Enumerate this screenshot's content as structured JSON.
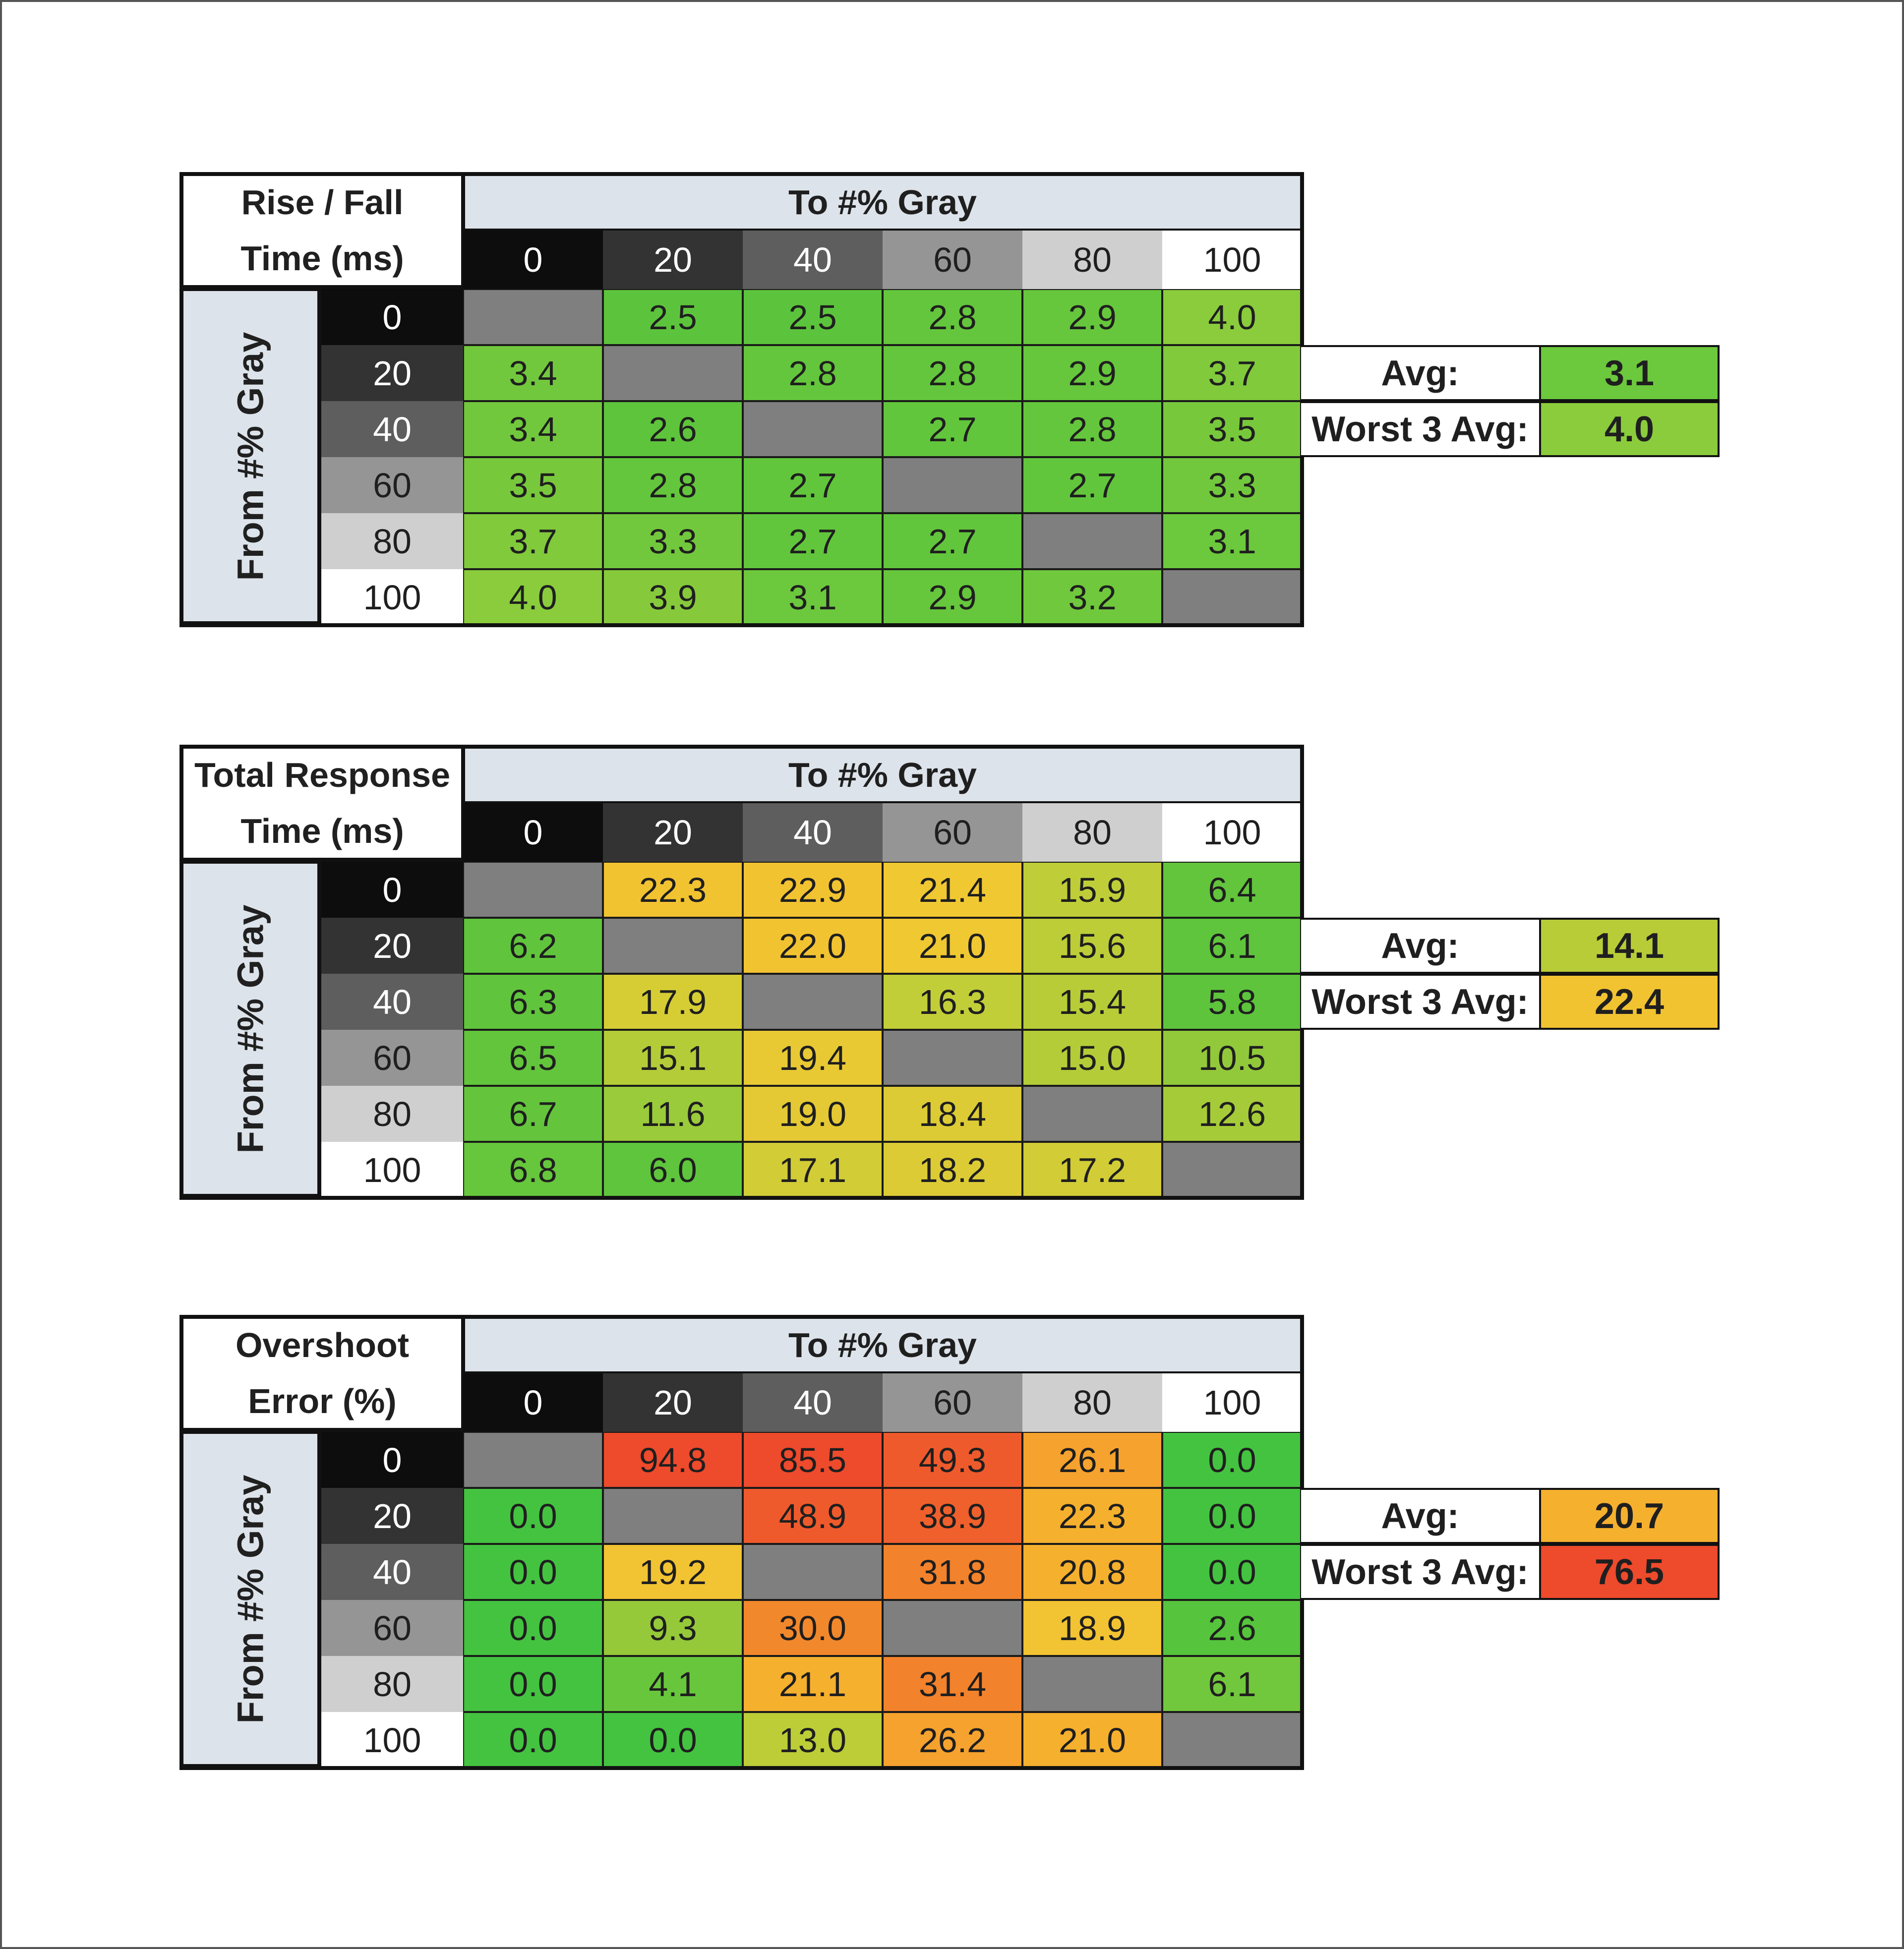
{
  "chart_data": [
    {
      "type": "table",
      "title_lines": [
        "Rise / Fall",
        "Time (ms)"
      ],
      "column_header": "To #% Gray",
      "row_header": "From #% Gray",
      "levels": [
        "0",
        "20",
        "40",
        "60",
        "80",
        "100"
      ],
      "values": [
        [
          null,
          "2.5",
          "2.5",
          "2.8",
          "2.9",
          "4.0"
        ],
        [
          "3.4",
          null,
          "2.8",
          "2.8",
          "2.9",
          "3.7"
        ],
        [
          "3.4",
          "2.6",
          null,
          "2.7",
          "2.8",
          "3.5"
        ],
        [
          "3.5",
          "2.8",
          "2.7",
          null,
          "2.7",
          "3.3"
        ],
        [
          "3.7",
          "3.3",
          "2.7",
          "2.7",
          null,
          "3.1"
        ],
        [
          "4.0",
          "3.9",
          "3.1",
          "2.9",
          "3.2",
          null
        ]
      ],
      "colors": [
        [
          null,
          "#5cc43c",
          "#5cc43c",
          "#64c63c",
          "#66c63c",
          "#8acc3c"
        ],
        [
          "#72c83c",
          null,
          "#64c63c",
          "#64c63c",
          "#66c63c",
          "#80ca3c"
        ],
        [
          "#72c83c",
          "#5ec43c",
          null,
          "#62c63c",
          "#64c63c",
          "#78c83c"
        ],
        [
          "#78c83c",
          "#64c63c",
          "#62c63c",
          null,
          "#62c63c",
          "#72c83c"
        ],
        [
          "#80ca3c",
          "#72c83c",
          "#62c63c",
          "#62c63c",
          null,
          "#6cc83c"
        ],
        [
          "#8acc3c",
          "#86ca3c",
          "#6cc83c",
          "#66c63c",
          "#70c83c",
          null
        ]
      ],
      "stats": [
        {
          "label": "Avg:",
          "value": "3.1",
          "color": "#6cc83c"
        },
        {
          "label": "Worst 3 Avg:",
          "value": "4.0",
          "color": "#8acc3c"
        }
      ]
    },
    {
      "type": "table",
      "title_lines": [
        "Total Response",
        "Time (ms)"
      ],
      "column_header": "To #% Gray",
      "row_header": "From #% Gray",
      "levels": [
        "0",
        "20",
        "40",
        "60",
        "80",
        "100"
      ],
      "values": [
        [
          null,
          "22.3",
          "22.9",
          "21.4",
          "15.9",
          "6.4"
        ],
        [
          "6.2",
          null,
          "22.0",
          "21.0",
          "15.6",
          "6.1"
        ],
        [
          "6.3",
          "17.9",
          null,
          "16.3",
          "15.4",
          "5.8"
        ],
        [
          "6.5",
          "15.1",
          "19.4",
          null,
          "15.0",
          "10.5"
        ],
        [
          "6.7",
          "11.6",
          "19.0",
          "18.4",
          null,
          "12.6"
        ],
        [
          "6.8",
          "6.0",
          "17.1",
          "18.2",
          "17.2",
          null
        ]
      ],
      "colors": [
        [
          null,
          "#f2c331",
          "#f2c331",
          "#f0c832",
          "#bfce38",
          "#62c53c"
        ],
        [
          "#60c53c",
          null,
          "#f2c331",
          "#efc832",
          "#bccd38",
          "#5fc53c"
        ],
        [
          "#60c53c",
          "#d6cd35",
          null,
          "#c2ce38",
          "#b8cc38",
          "#5dc43c"
        ],
        [
          "#62c53c",
          "#b4cc38",
          "#e8c934",
          null,
          "#b4cc38",
          "#92c93a"
        ],
        [
          "#64c53c",
          "#9acb3a",
          "#e4c934",
          "#dccb35",
          null,
          "#a6cb39"
        ],
        [
          "#66c63c",
          "#5ec53c",
          "#d2cc36",
          "#dccb35",
          "#d2cc36",
          null
        ]
      ],
      "stats": [
        {
          "label": "Avg:",
          "value": "14.1",
          "color": "#b8cc38"
        },
        {
          "label": "Worst 3 Avg:",
          "value": "22.4",
          "color": "#f2c331"
        }
      ]
    },
    {
      "type": "table",
      "title_lines": [
        "Overshoot",
        "Error (%)"
      ],
      "column_header": "To #% Gray",
      "row_header": "From #% Gray",
      "levels": [
        "0",
        "20",
        "40",
        "60",
        "80",
        "100"
      ],
      "values": [
        [
          null,
          "94.8",
          "85.5",
          "49.3",
          "26.1",
          "0.0"
        ],
        [
          "0.0",
          null,
          "48.9",
          "38.9",
          "22.3",
          "0.0"
        ],
        [
          "0.0",
          "19.2",
          null,
          "31.8",
          "20.8",
          "0.0"
        ],
        [
          "0.0",
          "9.3",
          "30.0",
          null,
          "18.9",
          "2.6"
        ],
        [
          "0.0",
          "4.1",
          "21.1",
          "31.4",
          null,
          "6.1"
        ],
        [
          "0.0",
          "0.0",
          "13.0",
          "26.2",
          "21.0",
          null
        ]
      ],
      "colors": [
        [
          null,
          "#ee4a2c",
          "#ee4a2c",
          "#ef5a2c",
          "#f5a22e",
          "#44c340"
        ],
        [
          "#44c340",
          null,
          "#ef5a2c",
          "#f0602c",
          "#f5b02e",
          "#44c340"
        ],
        [
          "#44c340",
          "#f2c332",
          null,
          "#f2822c",
          "#f5b02e",
          "#44c340"
        ],
        [
          "#44c340",
          "#96c93a",
          "#f2882c",
          null,
          "#f2c332",
          "#56c43c"
        ],
        [
          "#44c340",
          "#68c63c",
          "#f5b02e",
          "#f2822c",
          null,
          "#72c83c"
        ],
        [
          "#44c340",
          "#44c340",
          "#bccd38",
          "#f5a22e",
          "#f5b02e",
          null
        ]
      ],
      "stats": [
        {
          "label": "Avg:",
          "value": "20.7",
          "color": "#f5b02e"
        },
        {
          "label": "Worst 3 Avg:",
          "value": "76.5",
          "color": "#ee4a2c"
        }
      ]
    }
  ]
}
